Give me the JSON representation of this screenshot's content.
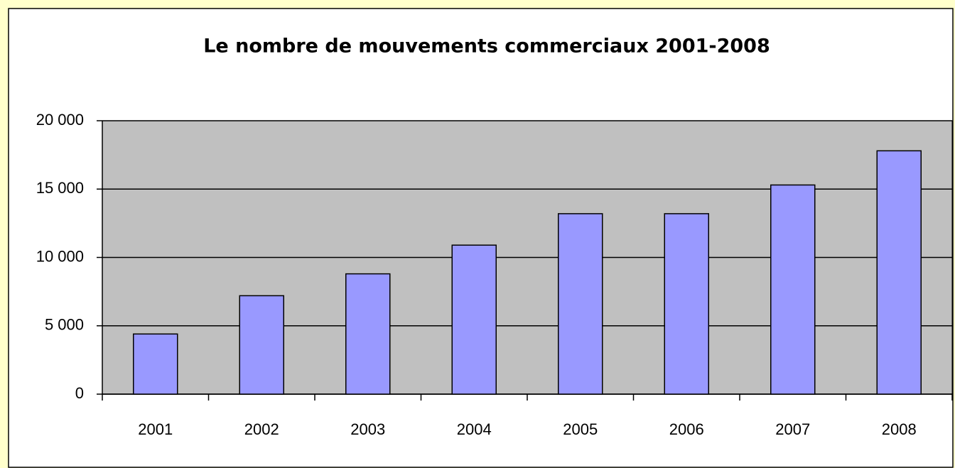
{
  "chart_data": {
    "type": "bar",
    "title": "Le nombre de mouvements commerciaux 2001-2008",
    "categories": [
      "2001",
      "2002",
      "2003",
      "2004",
      "2005",
      "2006",
      "2007",
      "2008"
    ],
    "values": [
      4400,
      7200,
      8800,
      10900,
      13200,
      13200,
      15300,
      17800
    ],
    "color": "#9999ff",
    "ylim": [
      0,
      20000
    ],
    "yticks": [
      0,
      {
        "value": 5000,
        "label": "5 000"
      },
      {
        "value": 10000,
        "label": "10 000"
      },
      {
        "value": 15000,
        "label": "15 000"
      },
      {
        "value": 20000,
        "label": "20 000"
      }
    ],
    "grid": true
  }
}
